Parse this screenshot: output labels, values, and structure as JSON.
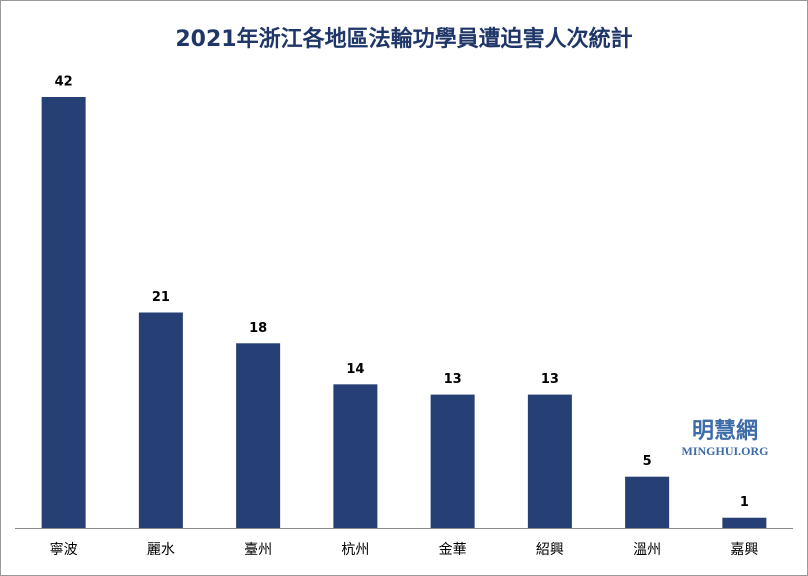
{
  "chart_data": {
    "type": "bar",
    "title": "2021年浙江各地區法輪功學員遭迫害人次統計",
    "categories": [
      "寧波",
      "麗水",
      "臺州",
      "杭州",
      "金華",
      "紹興",
      "溫州",
      "嘉興"
    ],
    "values": [
      42,
      21,
      18,
      14,
      13,
      13,
      5,
      1
    ],
    "color": "#263f74",
    "watermark": {
      "name": "明慧網",
      "url": "MINGHUI.ORG"
    }
  }
}
